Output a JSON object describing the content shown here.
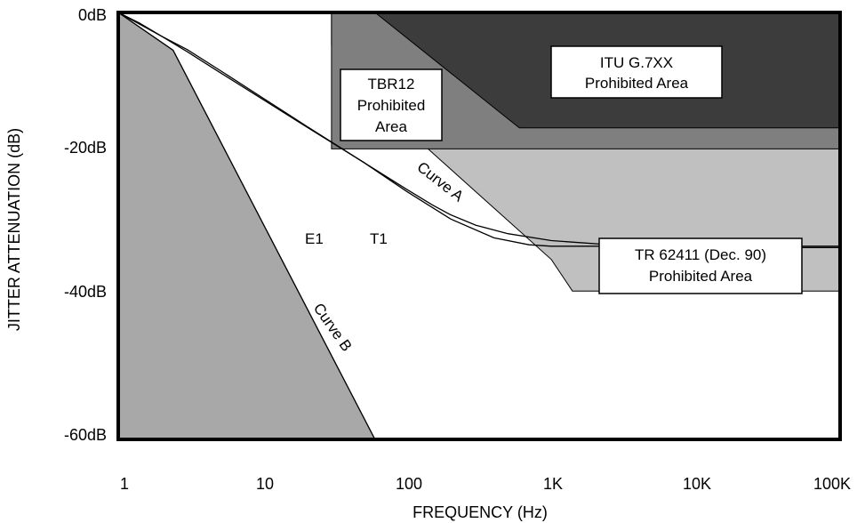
{
  "chart_data": {
    "type": "line",
    "xscale": "log",
    "xlim": [
      1,
      100000
    ],
    "ylim": [
      -61,
      0
    ],
    "xlabel": "FREQUENCY (Hz)",
    "ylabel": "JITTER ATTENUATION (dB)",
    "x_ticks": [
      {
        "value": 1,
        "label": "1"
      },
      {
        "value": 10,
        "label": "10"
      },
      {
        "value": 100,
        "label": "100"
      },
      {
        "value": 1000,
        "label": "1K"
      },
      {
        "value": 10000,
        "label": "10K"
      },
      {
        "value": 100000,
        "label": "100K"
      }
    ],
    "y_ticks": [
      {
        "value": 0,
        "label": "0dB"
      },
      {
        "value": -20,
        "label": "-20dB"
      },
      {
        "value": -40,
        "label": "-40dB"
      },
      {
        "value": -60,
        "label": "-60dB"
      }
    ],
    "grid": false,
    "colors": {
      "itu": "#3c3c3c",
      "tbr12": "#7f7f7f",
      "tr62411": "#c0c0c0",
      "curve_b_region": "#a8a8a8",
      "line": "#000000"
    },
    "regions": [
      {
        "name": "TR 62411 (Dec. 90) Prohibited Area",
        "color_key": "tr62411",
        "polygon": [
          [
            30,
            0
          ],
          [
            100000,
            0
          ],
          [
            100000,
            -39.8
          ],
          [
            1400,
            -39.8
          ],
          [
            1000,
            -35.3
          ],
          [
            140,
            -19.5
          ],
          [
            30,
            -4.7
          ]
        ]
      },
      {
        "name": "TBR12 Prohibited Area",
        "color_key": "tbr12",
        "polygon": [
          [
            30,
            0
          ],
          [
            100000,
            0
          ],
          [
            100000,
            -19.5
          ],
          [
            30,
            -19.5
          ]
        ]
      },
      {
        "name": "ITU G.7XX Prohibited Area",
        "color_key": "itu",
        "polygon": [
          [
            60,
            0
          ],
          [
            100000,
            0
          ],
          [
            100000,
            -16.5
          ],
          [
            600,
            -16.5
          ],
          [
            60,
            0
          ]
        ]
      },
      {
        "name": "Curve B region",
        "color_key": "curve_b_region",
        "polygon": [
          [
            1,
            0
          ],
          [
            2.4,
            -5.4
          ],
          [
            60,
            -61
          ],
          [
            1,
            -61
          ]
        ]
      }
    ],
    "series": [
      {
        "name": "Curve A",
        "points": [
          [
            1,
            0
          ],
          [
            1.4,
            -1.5
          ],
          [
            2.0,
            -3.4
          ],
          [
            3.0,
            -5.6
          ],
          [
            5,
            -8.5
          ],
          [
            10,
            -12.4
          ],
          [
            20,
            -16.3
          ],
          [
            50,
            -21.4
          ],
          [
            100,
            -25.3
          ],
          [
            150,
            -27.5
          ],
          [
            200,
            -28.9
          ],
          [
            300,
            -30.4
          ],
          [
            500,
            -31.6
          ],
          [
            1000,
            -32.6
          ],
          [
            3000,
            -33.3
          ],
          [
            6000,
            -33.5
          ],
          [
            10000,
            -33.6
          ],
          [
            100000,
            -33.6
          ]
        ]
      },
      {
        "name": "Curve B",
        "points": [
          [
            1,
            0
          ],
          [
            2.4,
            -5.4
          ],
          [
            60,
            -61
          ]
        ]
      },
      {
        "name": "E1",
        "points": [
          [
            1,
            0
          ],
          [
            1.5,
            -2.0
          ],
          [
            2.0,
            -3.4
          ],
          [
            3.0,
            -5.3
          ],
          [
            5,
            -8.2
          ],
          [
            10,
            -12.2
          ],
          [
            20,
            -16.2
          ],
          [
            50,
            -21.4
          ],
          [
            100,
            -25.6
          ],
          [
            200,
            -29.5
          ],
          [
            400,
            -32.2
          ],
          [
            700,
            -33.2
          ],
          [
            1000,
            -33.4
          ],
          [
            100000,
            -33.4
          ]
        ]
      }
    ],
    "labels": {
      "itu_box": [
        "ITU G.7XX",
        "Prohibited Area"
      ],
      "tbr12_box": [
        "TBR12",
        "Prohibited",
        "Area"
      ],
      "tr_box": [
        "TR 62411 (Dec. 90)",
        "Prohibited Area"
      ],
      "curve_a": "Curve A",
      "curve_b": "Curve B",
      "e1": "E1",
      "t1": "T1"
    }
  }
}
